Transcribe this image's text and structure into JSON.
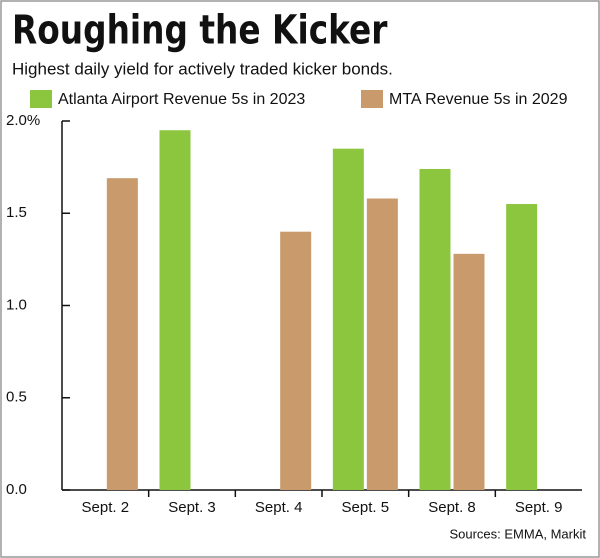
{
  "chart_data": {
    "type": "bar",
    "title": "Roughing the Kicker",
    "subtitle": "Highest daily yield for actively traded kicker bonds.",
    "source": "Sources: EMMA, Markit",
    "categories": [
      "Sept. 2",
      "Sept. 3",
      "Sept. 4",
      "Sept. 5",
      "Sept. 8",
      "Sept. 9"
    ],
    "series": [
      {
        "name": "Atlanta Airport Revenue 5s in 2023",
        "color": "#8cc63f",
        "values": [
          null,
          1.95,
          null,
          1.85,
          1.74,
          1.55
        ]
      },
      {
        "name": "MTA Revenue 5s in 2029",
        "color": "#c89a6c",
        "values": [
          1.69,
          null,
          1.4,
          1.58,
          1.28,
          null
        ]
      }
    ],
    "ylim": [
      0,
      2
    ],
    "yticks": [
      {
        "value": 0,
        "label": "0.0"
      },
      0.5,
      {
        "value": 1,
        "label": "1.0"
      },
      1.5,
      {
        "value": 2,
        "label": "2.0%"
      }
    ],
    "grid": false
  }
}
